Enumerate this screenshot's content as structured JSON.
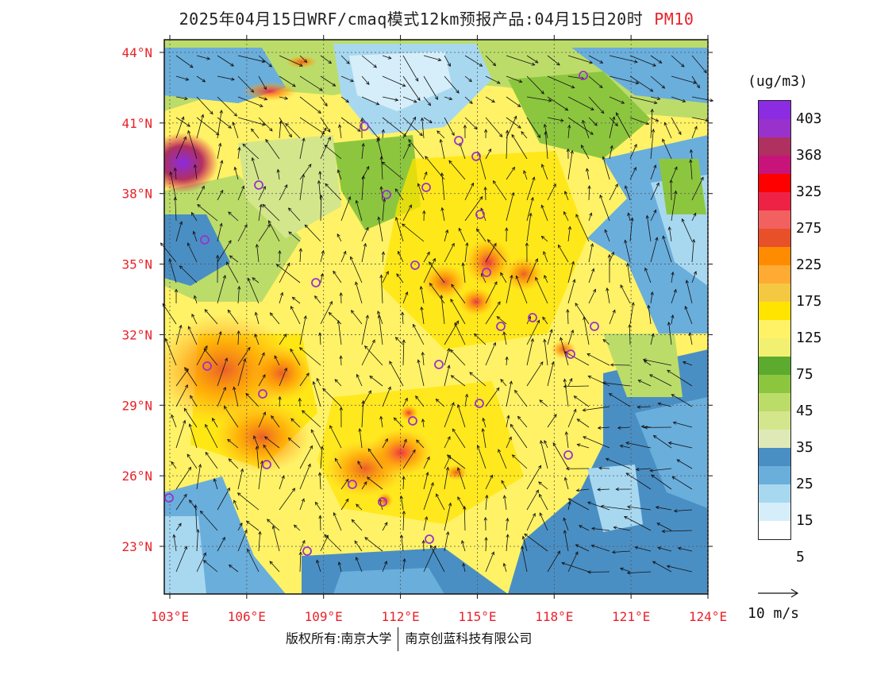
{
  "header": {
    "title": "2025年04月15日WRF/cmaq模式12km预报产品:04月15日20时",
    "pollutant": "PM10",
    "pollutant_color": "#e8222a"
  },
  "map": {
    "lat_labels": [
      "44°N",
      "41°N",
      "38°N",
      "35°N",
      "32°N",
      "29°N",
      "26°N",
      "23°N"
    ],
    "lon_labels": [
      "103°E",
      "106°E",
      "109°E",
      "112°E",
      "115°E",
      "118°E",
      "121°E",
      "124°E"
    ],
    "label_color": "#e8222a"
  },
  "legend": {
    "unit": "(ug/m3)",
    "labels": [
      "403",
      "368",
      "325",
      "275",
      "225",
      "175",
      "125",
      "75",
      "45",
      "35",
      "25",
      "15",
      "5"
    ],
    "colors": [
      "#8b2be2",
      "#9932cc",
      "#b03060",
      "#c8147a",
      "#ff0000",
      "#ee2244",
      "#f26060",
      "#e8502a",
      "#ff8c00",
      "#ffaa33",
      "#f5c842",
      "#ffe400",
      "#fff266",
      "#f2f070",
      "#5caa2e",
      "#8cc63f",
      "#bcdc6a",
      "#d4e68c",
      "#dfe9b8",
      "#4a8fc4",
      "#6aaedc",
      "#a8d8f0",
      "#d6eefa",
      "#ffffff"
    ]
  },
  "wind_reference": {
    "label": "10 m/s"
  },
  "footer": {
    "copyright_left": "版权所有:南京大学",
    "copyright_right": "南京创蓝科技有限公司"
  }
}
